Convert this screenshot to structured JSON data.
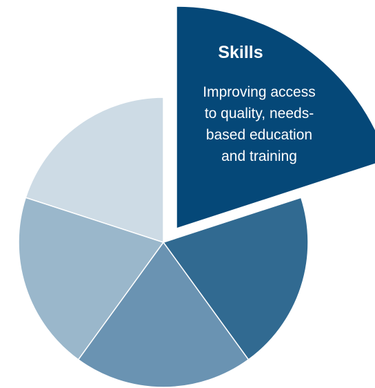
{
  "segments": [
    {
      "id": "skills",
      "title": "Skills",
      "description_lines": [
        "Improving access",
        "to quality, needs-",
        "based education",
        "and training"
      ],
      "color": "#054878",
      "highlighted": true,
      "share": 0.2
    },
    {
      "id": "segment-2",
      "color": "#316a91",
      "highlighted": false,
      "share": 0.2
    },
    {
      "id": "segment-3",
      "color": "#6a93b2",
      "highlighted": false,
      "share": 0.2
    },
    {
      "id": "segment-4",
      "color": "#9ab7cb",
      "highlighted": false,
      "share": 0.2
    },
    {
      "id": "segment-5",
      "color": "#cddbe5",
      "highlighted": false,
      "share": 0.2
    }
  ]
}
